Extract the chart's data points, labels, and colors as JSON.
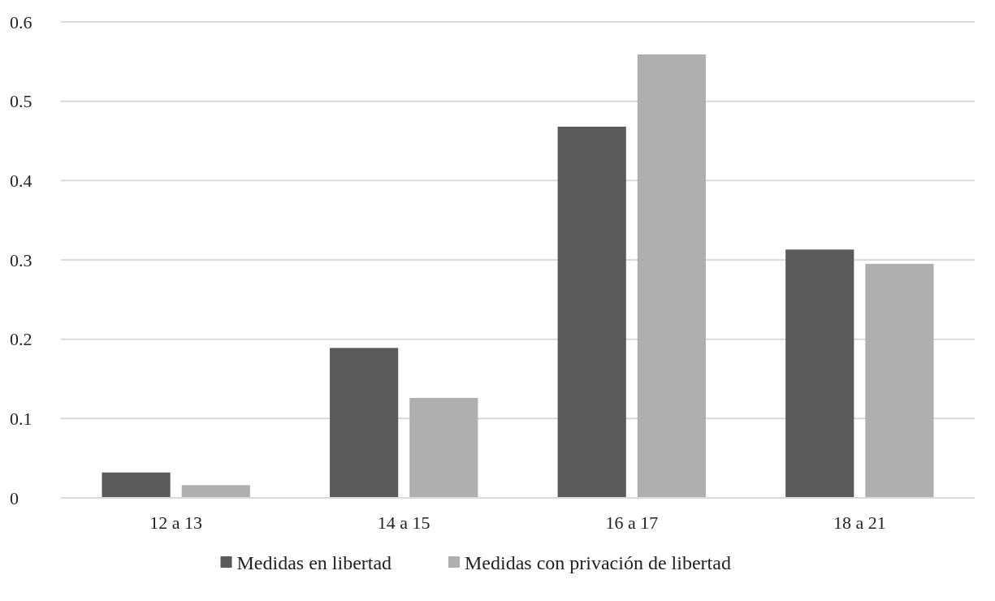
{
  "chart_data": {
    "type": "bar",
    "categories": [
      "12 a 13",
      "14 a 15",
      "16 a 17",
      "18 a 21"
    ],
    "series": [
      {
        "name": "Medidas en libertad",
        "color": "#5a5a5a",
        "values": [
          0.032,
          0.189,
          0.468,
          0.313
        ]
      },
      {
        "name": "Medidas con privación de libertad",
        "color": "#afafaf",
        "values": [
          0.016,
          0.126,
          0.559,
          0.295
        ]
      }
    ],
    "ylim": [
      0,
      0.6
    ],
    "yticks": [
      0,
      0.1,
      0.2,
      0.3,
      0.4,
      0.5,
      0.6
    ],
    "grid": "y",
    "legend": "bottom"
  }
}
